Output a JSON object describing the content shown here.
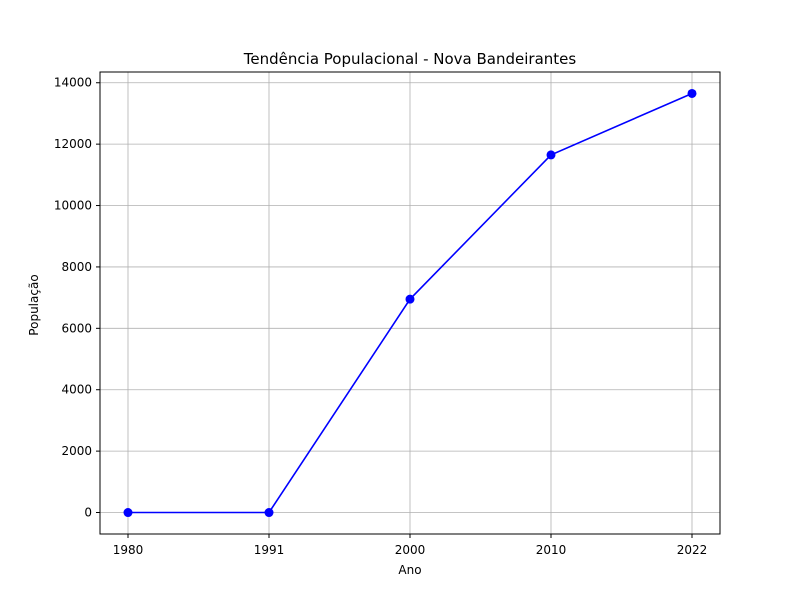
{
  "chart_data": {
    "type": "line",
    "title": "Tendência Populacional - Nova Bandeirantes",
    "xlabel": "Ano",
    "ylabel": "População",
    "categories": [
      "1980",
      "1991",
      "2000",
      "2010",
      "2022"
    ],
    "series": [
      {
        "values": [
          0,
          0,
          6950,
          11650,
          13650
        ],
        "color": "#0000ff",
        "marker": "circle"
      }
    ],
    "ylim": [
      -700,
      14350
    ],
    "yticks": [
      0,
      2000,
      4000,
      6000,
      8000,
      10000,
      12000,
      14000
    ],
    "grid": true
  }
}
